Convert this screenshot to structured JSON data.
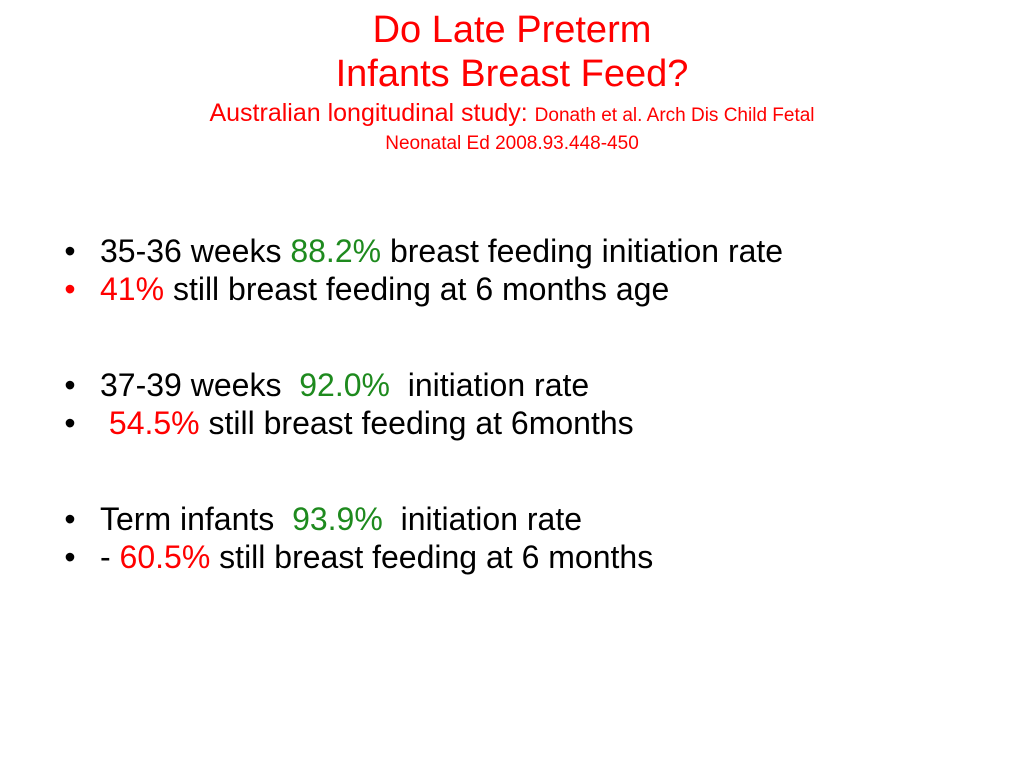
{
  "colors": {
    "title": "#ff0000",
    "highlight_green": "#1e8a1e",
    "highlight_red": "#ff0000",
    "text": "#000000",
    "background": "#ffffff"
  },
  "title": {
    "line1": "Do Late Preterm",
    "line2": "Infants Breast Feed?",
    "subtitle_lead": "Australian longitudinal study: ",
    "citation_part1": "Donath et al. Arch Dis Child Fetal",
    "citation_part2": "Neonatal Ed 2008.93.448-450"
  },
  "bullets": [
    {
      "marker": "•",
      "pre": "35-36 weeks ",
      "value": "88.2%",
      "post": " breast feeding initiation rate"
    },
    {
      "marker": "•",
      "pre": "",
      "value": "41%",
      "post": " still breast feeding at 6 months age"
    },
    {
      "marker": "•",
      "pre": "37-39 weeks  ",
      "value": "92.0%",
      "post": "  initiation rate"
    },
    {
      "marker": "•",
      "pre": " ",
      "value": "54.5%",
      "post": " still breast feeding at 6months"
    },
    {
      "marker": "•",
      "pre": "Term infants  ",
      "value": "93.9%",
      "post": "  initiation rate"
    },
    {
      "marker": "•",
      "pre": "- ",
      "value": "60.5%",
      "post": " still breast feeding at 6 months"
    }
  ]
}
